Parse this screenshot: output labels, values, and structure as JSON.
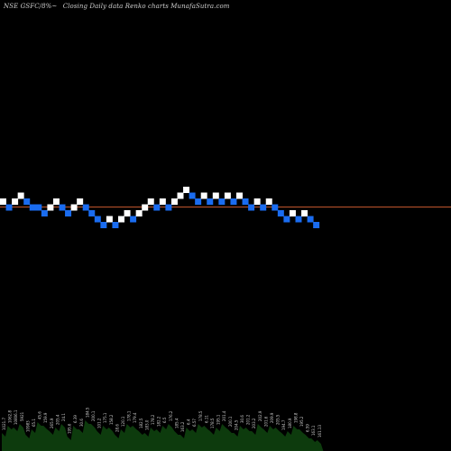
{
  "header": {
    "symbol_label": "NSE GSFC/8%~",
    "description": "Closing Daily data  Renko  charts MunafaSutra.com"
  },
  "chart_data": {
    "type": "renko",
    "title": "",
    "xlabel": "",
    "ylabel": "",
    "colors": {
      "up": "#ffffff",
      "down": "#1a6cf0",
      "reference_line": "#c0552c",
      "volume": "#0d3b0d"
    },
    "reference_line": {
      "level": 0
    },
    "bricks": [
      {
        "level": 0,
        "color": "up"
      },
      {
        "level": -1,
        "color": "down"
      },
      {
        "level": 0,
        "color": "up"
      },
      {
        "level": 1,
        "color": "up"
      },
      {
        "level": 0,
        "color": "down"
      },
      {
        "level": -1,
        "color": "down"
      },
      {
        "level": -1,
        "color": "down"
      },
      {
        "level": -2,
        "color": "down"
      },
      {
        "level": -1,
        "color": "up"
      },
      {
        "level": 0,
        "color": "up"
      },
      {
        "level": -1,
        "color": "down"
      },
      {
        "level": -2,
        "color": "down"
      },
      {
        "level": -1,
        "color": "up"
      },
      {
        "level": 0,
        "color": "up"
      },
      {
        "level": -1,
        "color": "down"
      },
      {
        "level": -2,
        "color": "down"
      },
      {
        "level": -3,
        "color": "down"
      },
      {
        "level": -4,
        "color": "down"
      },
      {
        "level": -3,
        "color": "up"
      },
      {
        "level": -4,
        "color": "down"
      },
      {
        "level": -3,
        "color": "up"
      },
      {
        "level": -2,
        "color": "up"
      },
      {
        "level": -3,
        "color": "down"
      },
      {
        "level": -2,
        "color": "up"
      },
      {
        "level": -1,
        "color": "up"
      },
      {
        "level": 0,
        "color": "up"
      },
      {
        "level": -1,
        "color": "down"
      },
      {
        "level": 0,
        "color": "up"
      },
      {
        "level": -1,
        "color": "down"
      },
      {
        "level": 0,
        "color": "up"
      },
      {
        "level": 1,
        "color": "up"
      },
      {
        "level": 2,
        "color": "up"
      },
      {
        "level": 1,
        "color": "down"
      },
      {
        "level": 0,
        "color": "down"
      },
      {
        "level": 1,
        "color": "up"
      },
      {
        "level": 0,
        "color": "down"
      },
      {
        "level": 1,
        "color": "up"
      },
      {
        "level": 0,
        "color": "down"
      },
      {
        "level": 1,
        "color": "up"
      },
      {
        "level": 0,
        "color": "down"
      },
      {
        "level": 1,
        "color": "up"
      },
      {
        "level": 0,
        "color": "down"
      },
      {
        "level": -1,
        "color": "down"
      },
      {
        "level": 0,
        "color": "up"
      },
      {
        "level": -1,
        "color": "down"
      },
      {
        "level": 0,
        "color": "up"
      },
      {
        "level": -1,
        "color": "down"
      },
      {
        "level": -2,
        "color": "down"
      },
      {
        "level": -3,
        "color": "down"
      },
      {
        "level": -2,
        "color": "up"
      },
      {
        "level": -3,
        "color": "down"
      },
      {
        "level": -2,
        "color": "up"
      },
      {
        "level": -3,
        "color": "down"
      },
      {
        "level": -4,
        "color": "down"
      }
    ],
    "volume_labels": [
      "1021.7",
      "1062.8",
      "10806.1",
      "5921",
      "10983",
      "65.1",
      "45.6",
      "159.9",
      "265.9",
      "205.4",
      "24.1",
      "195.6",
      "6.39",
      "30.6",
      "184.5",
      "200.1",
      "101.2",
      "175.1",
      "158.2",
      "28.6",
      "120.1",
      "178.1",
      "179.4",
      "182.5",
      "183.0",
      "178.2",
      "182.2",
      "6.5",
      "176.2",
      "185.4",
      "163.2",
      "6.4",
      "6.57",
      "178.5",
      "6.11",
      "178.5",
      "195.1",
      "201.4",
      "200.1",
      "204.5",
      "30.6",
      "201.2",
      "203.2",
      "202.9",
      "201.6",
      "209.9",
      "205.5",
      "194.7",
      "180.9",
      "198.8",
      "195.2",
      "6.59",
      "163.1",
      "161.13"
    ],
    "volume_heights": [
      20,
      28,
      26,
      30,
      18,
      24,
      32,
      28,
      22,
      26,
      30,
      16,
      28,
      24,
      34,
      30,
      22,
      28,
      26,
      18,
      24,
      30,
      28,
      22,
      20,
      26,
      24,
      28,
      30,
      22,
      18,
      26,
      24,
      30,
      28,
      22,
      26,
      30,
      24,
      20,
      28,
      26,
      22,
      30,
      24,
      28,
      26,
      20,
      22,
      28,
      24,
      18,
      14,
      12
    ]
  }
}
